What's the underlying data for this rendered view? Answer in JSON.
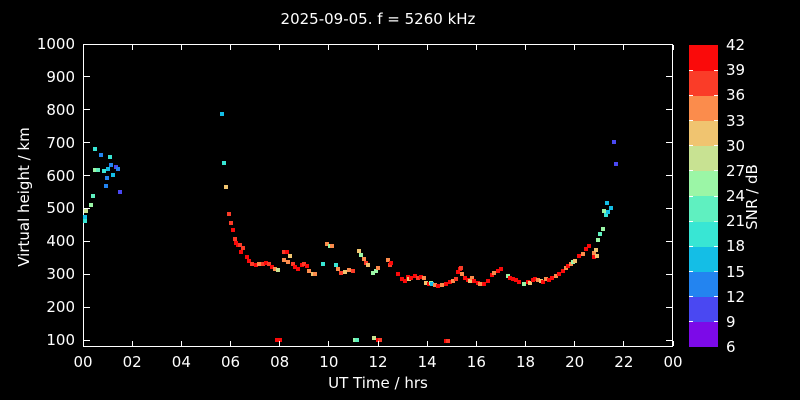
{
  "title": "2025-09-05. f = 5260 kHz",
  "chart_data": {
    "type": "scatter",
    "title": "2025-09-05. f = 5260 kHz",
    "xlabel": "UT Time / hrs",
    "ylabel": "Virtual height / km",
    "xlim": [
      0,
      24
    ],
    "ylim": [
      79,
      1000
    ],
    "grid": false,
    "background": "#000000",
    "frame_color": "#ffffff",
    "text_color": "#ffffff",
    "x_tick_values": [
      0,
      2,
      4,
      6,
      8,
      10,
      12,
      14,
      16,
      18,
      20,
      22,
      24
    ],
    "x_tick_labels": [
      "00",
      "02",
      "04",
      "06",
      "08",
      "10",
      "12",
      "14",
      "16",
      "18",
      "20",
      "22",
      "00"
    ],
    "y_tick_values": [
      100,
      200,
      300,
      400,
      500,
      600,
      700,
      800,
      900,
      1000
    ],
    "colorbar": {
      "label": "SNR / dB",
      "min": 6,
      "max": 42,
      "step": 3,
      "tick_labels": [
        "42",
        "39",
        "36",
        "33",
        "30",
        "27",
        "24",
        "21",
        "18",
        "15",
        "12",
        "9",
        "6"
      ],
      "colors_bottom_to_top": [
        "#7C0AE8",
        "#4A48F2",
        "#2384F0",
        "#14BEE6",
        "#38E6D4",
        "#5FF0C0",
        "#9BF6A6",
        "#C8E292",
        "#F0C470",
        "#FB8C4C",
        "#FA3C28",
        "#FA0A0A"
      ]
    },
    "points_format": [
      "ut_hours",
      "virtual_height_km",
      "snr_db"
    ],
    "points": [
      [
        0.02,
        477,
        16.5
      ],
      [
        0.05,
        465,
        19.5
      ],
      [
        0.08,
        495,
        28.5
      ],
      [
        0.28,
        513,
        25.5
      ],
      [
        0.37,
        541,
        22.5
      ],
      [
        0.45,
        684,
        19.5
      ],
      [
        0.45,
        620,
        25.5
      ],
      [
        0.57,
        620,
        22.5
      ],
      [
        0.69,
        665,
        13.5
      ],
      [
        0.81,
        617,
        19.5
      ],
      [
        0.89,
        571,
        13.5
      ],
      [
        0.94,
        596,
        13.5
      ],
      [
        0.98,
        623,
        16.5
      ],
      [
        1.06,
        659,
        19.5
      ],
      [
        1.1,
        635,
        13.5
      ],
      [
        1.18,
        605,
        16.5
      ],
      [
        1.3,
        629,
        10.5
      ],
      [
        1.38,
        623,
        13.5
      ],
      [
        1.46,
        553,
        10.5
      ],
      [
        5.61,
        790,
        16.5
      ],
      [
        5.69,
        641,
        19.5
      ],
      [
        5.78,
        568,
        31.5
      ],
      [
        5.9,
        486,
        37.5
      ],
      [
        5.98,
        459,
        37.5
      ],
      [
        6.06,
        437,
        40.5
      ],
      [
        6.14,
        410,
        37.5
      ],
      [
        6.18,
        398,
        40.5
      ],
      [
        6.26,
        392,
        40.5
      ],
      [
        6.35,
        392,
        37.5
      ],
      [
        6.39,
        371,
        40.5
      ],
      [
        6.47,
        383,
        37.5
      ],
      [
        6.63,
        355,
        40.5
      ],
      [
        6.71,
        343,
        40.5
      ],
      [
        6.83,
        334,
        37.5
      ],
      [
        7.0,
        331,
        40.5
      ],
      [
        7.12,
        334,
        34.5
      ],
      [
        7.28,
        334,
        37.5
      ],
      [
        7.4,
        337,
        40.5
      ],
      [
        7.52,
        334,
        37.5
      ],
      [
        7.65,
        325,
        40.5
      ],
      [
        7.77,
        319,
        34.5
      ],
      [
        7.89,
        316,
        28.5
      ],
      [
        7.85,
        103,
        40.5
      ],
      [
        7.97,
        103,
        40.5
      ],
      [
        8.13,
        371,
        37.5
      ],
      [
        8.26,
        371,
        40.5
      ],
      [
        8.13,
        346,
        34.5
      ],
      [
        8.3,
        340,
        34.5
      ],
      [
        8.38,
        358,
        31.5
      ],
      [
        8.5,
        334,
        37.5
      ],
      [
        8.58,
        325,
        40.5
      ],
      [
        8.7,
        319,
        40.5
      ],
      [
        8.87,
        331,
        40.5
      ],
      [
        8.95,
        334,
        37.5
      ],
      [
        9.07,
        328,
        40.5
      ],
      [
        9.15,
        313,
        34.5
      ],
      [
        9.31,
        304,
        31.5
      ],
      [
        9.4,
        304,
        34.5
      ],
      [
        9.72,
        334,
        19.5
      ],
      [
        9.88,
        395,
        34.5
      ],
      [
        10.0,
        389,
        25.5
      ],
      [
        10.09,
        389,
        34.5
      ],
      [
        10.25,
        331,
        19.5
      ],
      [
        10.33,
        319,
        34.5
      ],
      [
        10.45,
        307,
        37.5
      ],
      [
        10.61,
        310,
        31.5
      ],
      [
        10.78,
        316,
        34.5
      ],
      [
        10.94,
        313,
        37.5
      ],
      [
        11.02,
        104,
        25.5
      ],
      [
        11.1,
        104,
        22.5
      ],
      [
        11.18,
        374,
        31.5
      ],
      [
        11.27,
        361,
        25.5
      ],
      [
        11.39,
        349,
        34.5
      ],
      [
        11.47,
        337,
        37.5
      ],
      [
        11.55,
        331,
        31.5
      ],
      [
        11.76,
        307,
        25.5
      ],
      [
        11.88,
        313,
        25.5
      ],
      [
        11.96,
        322,
        34.5
      ],
      [
        11.79,
        109,
        28.5
      ],
      [
        11.96,
        103,
        40.5
      ],
      [
        12.04,
        103,
        37.5
      ],
      [
        12.37,
        346,
        34.5
      ],
      [
        12.45,
        331,
        37.5
      ],
      [
        12.49,
        337,
        40.5
      ],
      [
        12.77,
        304,
        40.5
      ],
      [
        12.94,
        289,
        40.5
      ],
      [
        13.06,
        282,
        40.5
      ],
      [
        13.18,
        295,
        40.5
      ],
      [
        13.22,
        289,
        31.5
      ],
      [
        13.3,
        292,
        40.5
      ],
      [
        13.46,
        298,
        40.5
      ],
      [
        13.59,
        292,
        37.5
      ],
      [
        13.71,
        295,
        40.5
      ],
      [
        13.83,
        292,
        34.5
      ],
      [
        13.91,
        276,
        31.5
      ],
      [
        14.03,
        273,
        40.5
      ],
      [
        14.11,
        276,
        25.5
      ],
      [
        14.15,
        273,
        16.5
      ],
      [
        14.28,
        270,
        34.5
      ],
      [
        14.4,
        267,
        40.5
      ],
      [
        14.56,
        270,
        34.5
      ],
      [
        14.72,
        273,
        40.5
      ],
      [
        14.89,
        279,
        40.5
      ],
      [
        14.72,
        100,
        40.5
      ],
      [
        14.8,
        100,
        37.5
      ],
      [
        15.01,
        282,
        34.5
      ],
      [
        15.13,
        289,
        37.5
      ],
      [
        15.21,
        310,
        40.5
      ],
      [
        15.29,
        319,
        40.5
      ],
      [
        15.33,
        322,
        37.5
      ],
      [
        15.37,
        304,
        34.5
      ],
      [
        15.5,
        292,
        40.5
      ],
      [
        15.62,
        286,
        40.5
      ],
      [
        15.7,
        282,
        31.5
      ],
      [
        15.78,
        292,
        34.5
      ],
      [
        15.86,
        282,
        40.5
      ],
      [
        16.03,
        276,
        40.5
      ],
      [
        16.11,
        273,
        34.5
      ],
      [
        16.27,
        273,
        40.5
      ],
      [
        16.43,
        282,
        40.5
      ],
      [
        16.6,
        301,
        40.5
      ],
      [
        16.68,
        307,
        34.5
      ],
      [
        16.84,
        313,
        40.5
      ],
      [
        16.96,
        319,
        40.5
      ],
      [
        17.25,
        298,
        25.5
      ],
      [
        17.33,
        292,
        40.5
      ],
      [
        17.45,
        289,
        40.5
      ],
      [
        17.57,
        286,
        40.5
      ],
      [
        17.7,
        279,
        40.5
      ],
      [
        17.9,
        273,
        25.5
      ],
      [
        18.06,
        279,
        40.5
      ],
      [
        18.14,
        276,
        31.5
      ],
      [
        18.27,
        286,
        40.5
      ],
      [
        18.35,
        289,
        40.5
      ],
      [
        18.47,
        286,
        34.5
      ],
      [
        18.59,
        282,
        31.5
      ],
      [
        18.67,
        279,
        40.5
      ],
      [
        18.8,
        289,
        34.5
      ],
      [
        18.92,
        286,
        40.5
      ],
      [
        19.04,
        292,
        40.5
      ],
      [
        19.2,
        298,
        34.5
      ],
      [
        19.33,
        304,
        40.5
      ],
      [
        19.49,
        313,
        40.5
      ],
      [
        19.61,
        322,
        34.5
      ],
      [
        19.69,
        328,
        40.5
      ],
      [
        19.82,
        334,
        34.5
      ],
      [
        19.9,
        340,
        25.5
      ],
      [
        19.98,
        343,
        31.5
      ],
      [
        20.14,
        358,
        40.5
      ],
      [
        20.31,
        364,
        34.5
      ],
      [
        20.43,
        380,
        40.5
      ],
      [
        20.55,
        389,
        40.5
      ],
      [
        20.74,
        356,
        40.5
      ],
      [
        20.74,
        368,
        34.5
      ],
      [
        20.82,
        377,
        31.5
      ],
      [
        20.86,
        359,
        31.5
      ],
      [
        20.91,
        407,
        25.5
      ],
      [
        20.99,
        425,
        22.5
      ],
      [
        21.11,
        440,
        25.5
      ],
      [
        21.15,
        495,
        25.5
      ],
      [
        21.23,
        483,
        19.5
      ],
      [
        21.27,
        520,
        16.5
      ],
      [
        21.31,
        492,
        16.5
      ],
      [
        21.43,
        504,
        16.5
      ],
      [
        21.56,
        705,
        10.5
      ],
      [
        21.64,
        638,
        10.5
      ]
    ]
  }
}
